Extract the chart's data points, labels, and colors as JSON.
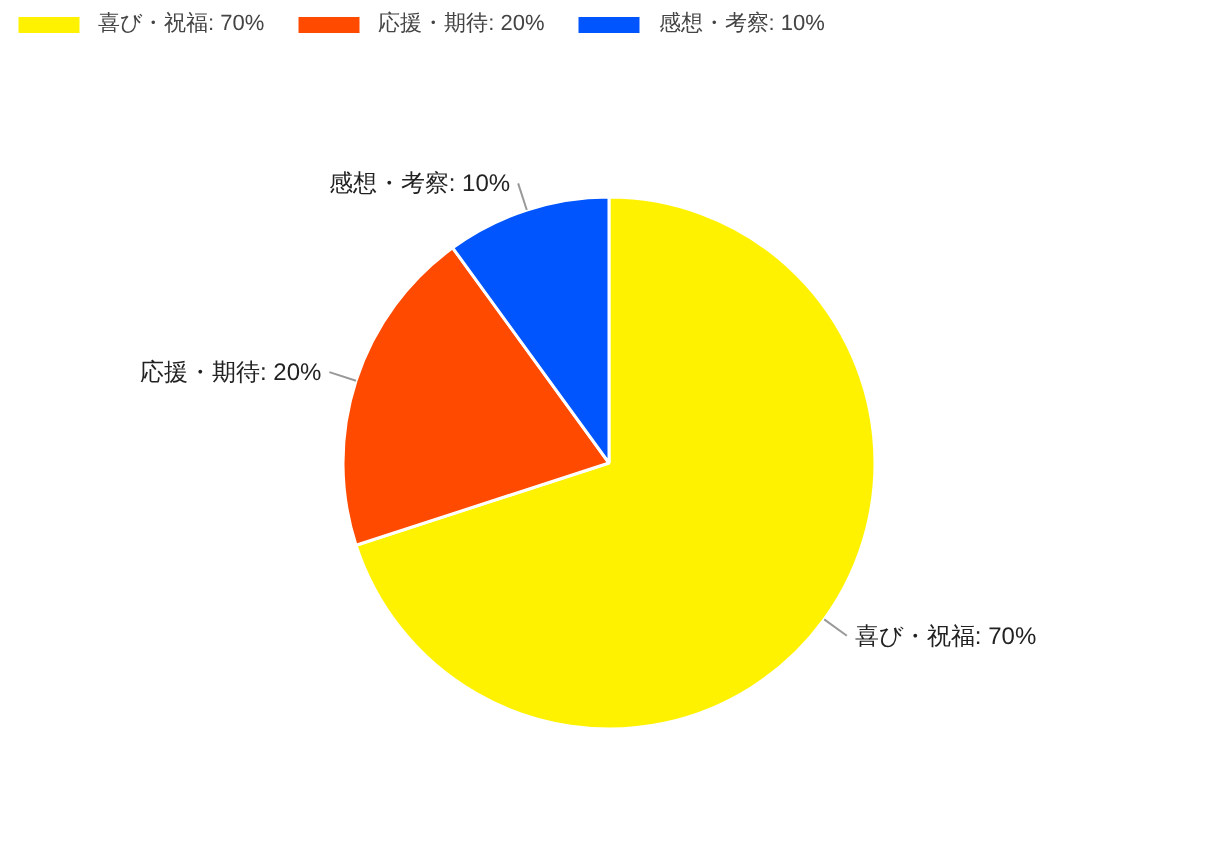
{
  "chart_data": {
    "type": "pie",
    "categories": [
      "喜び・祝福: 70%",
      "応援・期待: 20%",
      "感想・考察: 10%"
    ],
    "values": [
      70,
      20,
      10
    ],
    "colors": [
      "#fff200",
      "#ff4a00",
      "#0055ff"
    ],
    "legend": "top left"
  }
}
